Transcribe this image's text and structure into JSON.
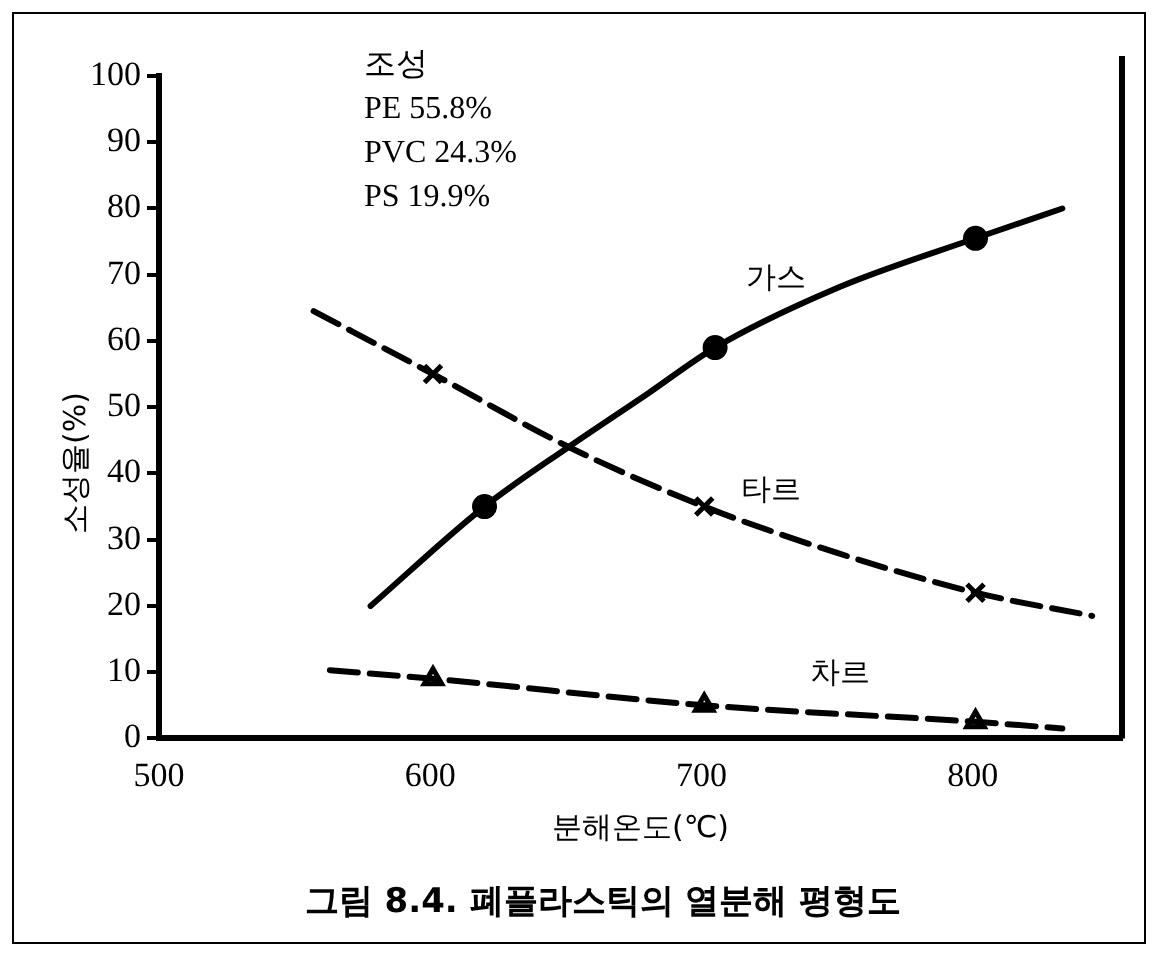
{
  "chart_data": {
    "type": "line",
    "title": "그림 8.4. 폐플라스틱의 열분해 평형도",
    "xlabel": "분해온도(℃)",
    "ylabel": "소성율(%)",
    "annotations": [
      "조성",
      "PE 55.8%",
      "PVC 24.3%",
      "PS 19.9%"
    ],
    "xlim": [
      500,
      855
    ],
    "xticks": [
      500,
      600,
      700,
      800
    ],
    "ylim": [
      0,
      100
    ],
    "yticks": [
      0,
      10,
      20,
      30,
      40,
      50,
      60,
      70,
      80,
      90,
      100
    ],
    "grid": false,
    "legend": false,
    "series": [
      {
        "name": "가스",
        "color": "#000000",
        "line_style": "solid",
        "marker": "none",
        "x": [
          578,
          620,
          651,
          680,
          705,
          750,
          801,
          833
        ],
        "values": [
          20,
          35,
          44,
          52,
          59,
          68,
          75.5,
          80
        ]
      },
      {
        "type": "scatter",
        "color": "#000000",
        "marker": "circle",
        "x": [
          620,
          705,
          801
        ],
        "values": [
          35,
          59,
          75.5
        ]
      },
      {
        "name": "타르",
        "color": "#000000",
        "line_style": "dashed",
        "marker": "none",
        "x": [
          557,
          601,
          651,
          701,
          750,
          801,
          844
        ],
        "values": [
          64.5,
          55,
          44,
          35,
          28,
          22,
          18.5
        ]
      },
      {
        "type": "scatter",
        "color": "#000000",
        "marker": "cross",
        "x": [
          601,
          701,
          801
        ],
        "values": [
          55,
          35,
          22
        ]
      },
      {
        "name": "차르",
        "color": "#000000",
        "line_style": "dashed",
        "marker": "none",
        "x": [
          563,
          601,
          701,
          801,
          833
        ],
        "values": [
          10.3,
          9,
          5,
          2.5,
          1.5
        ]
      },
      {
        "type": "scatter",
        "color": "#000000",
        "marker": "triangle",
        "x": [
          601,
          701,
          801
        ],
        "values": [
          9,
          5,
          2.5
        ]
      }
    ]
  }
}
